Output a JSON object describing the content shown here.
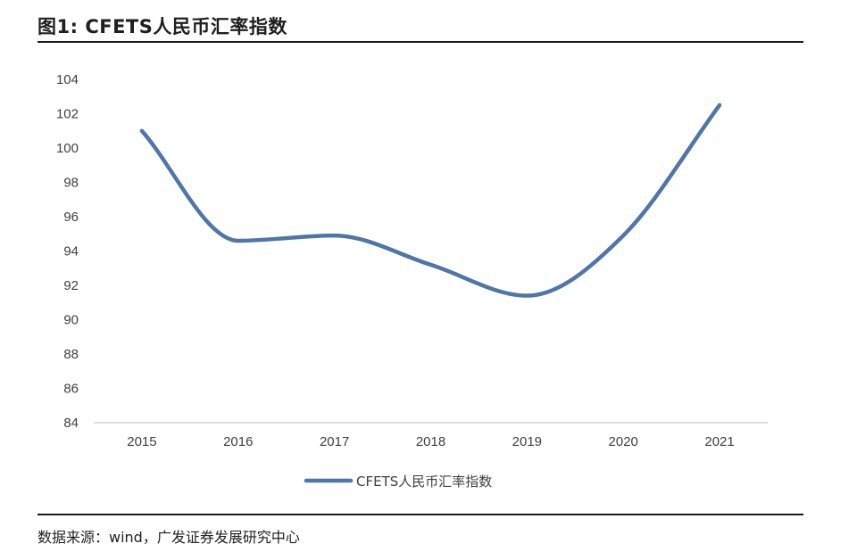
{
  "figure": {
    "title": "图1:  CFETS人民币汇率指数",
    "source": "数据来源：wind，广发证券发展研究中心"
  },
  "chart_data": {
    "type": "line",
    "categories": [
      "2015",
      "2016",
      "2017",
      "2018",
      "2019",
      "2020",
      "2021"
    ],
    "series": [
      {
        "name": "CFETS人民币汇率指数",
        "color": "#4f76a7",
        "values": [
          101.0,
          94.6,
          94.9,
          93.2,
          91.4,
          94.9,
          102.5
        ]
      }
    ],
    "y_ticks": [
      "84",
      "86",
      "88",
      "90",
      "92",
      "94",
      "96",
      "98",
      "100",
      "102",
      "104"
    ],
    "ylim": [
      84,
      104
    ],
    "grid": false,
    "legend_position": "bottom",
    "smooth": true
  }
}
